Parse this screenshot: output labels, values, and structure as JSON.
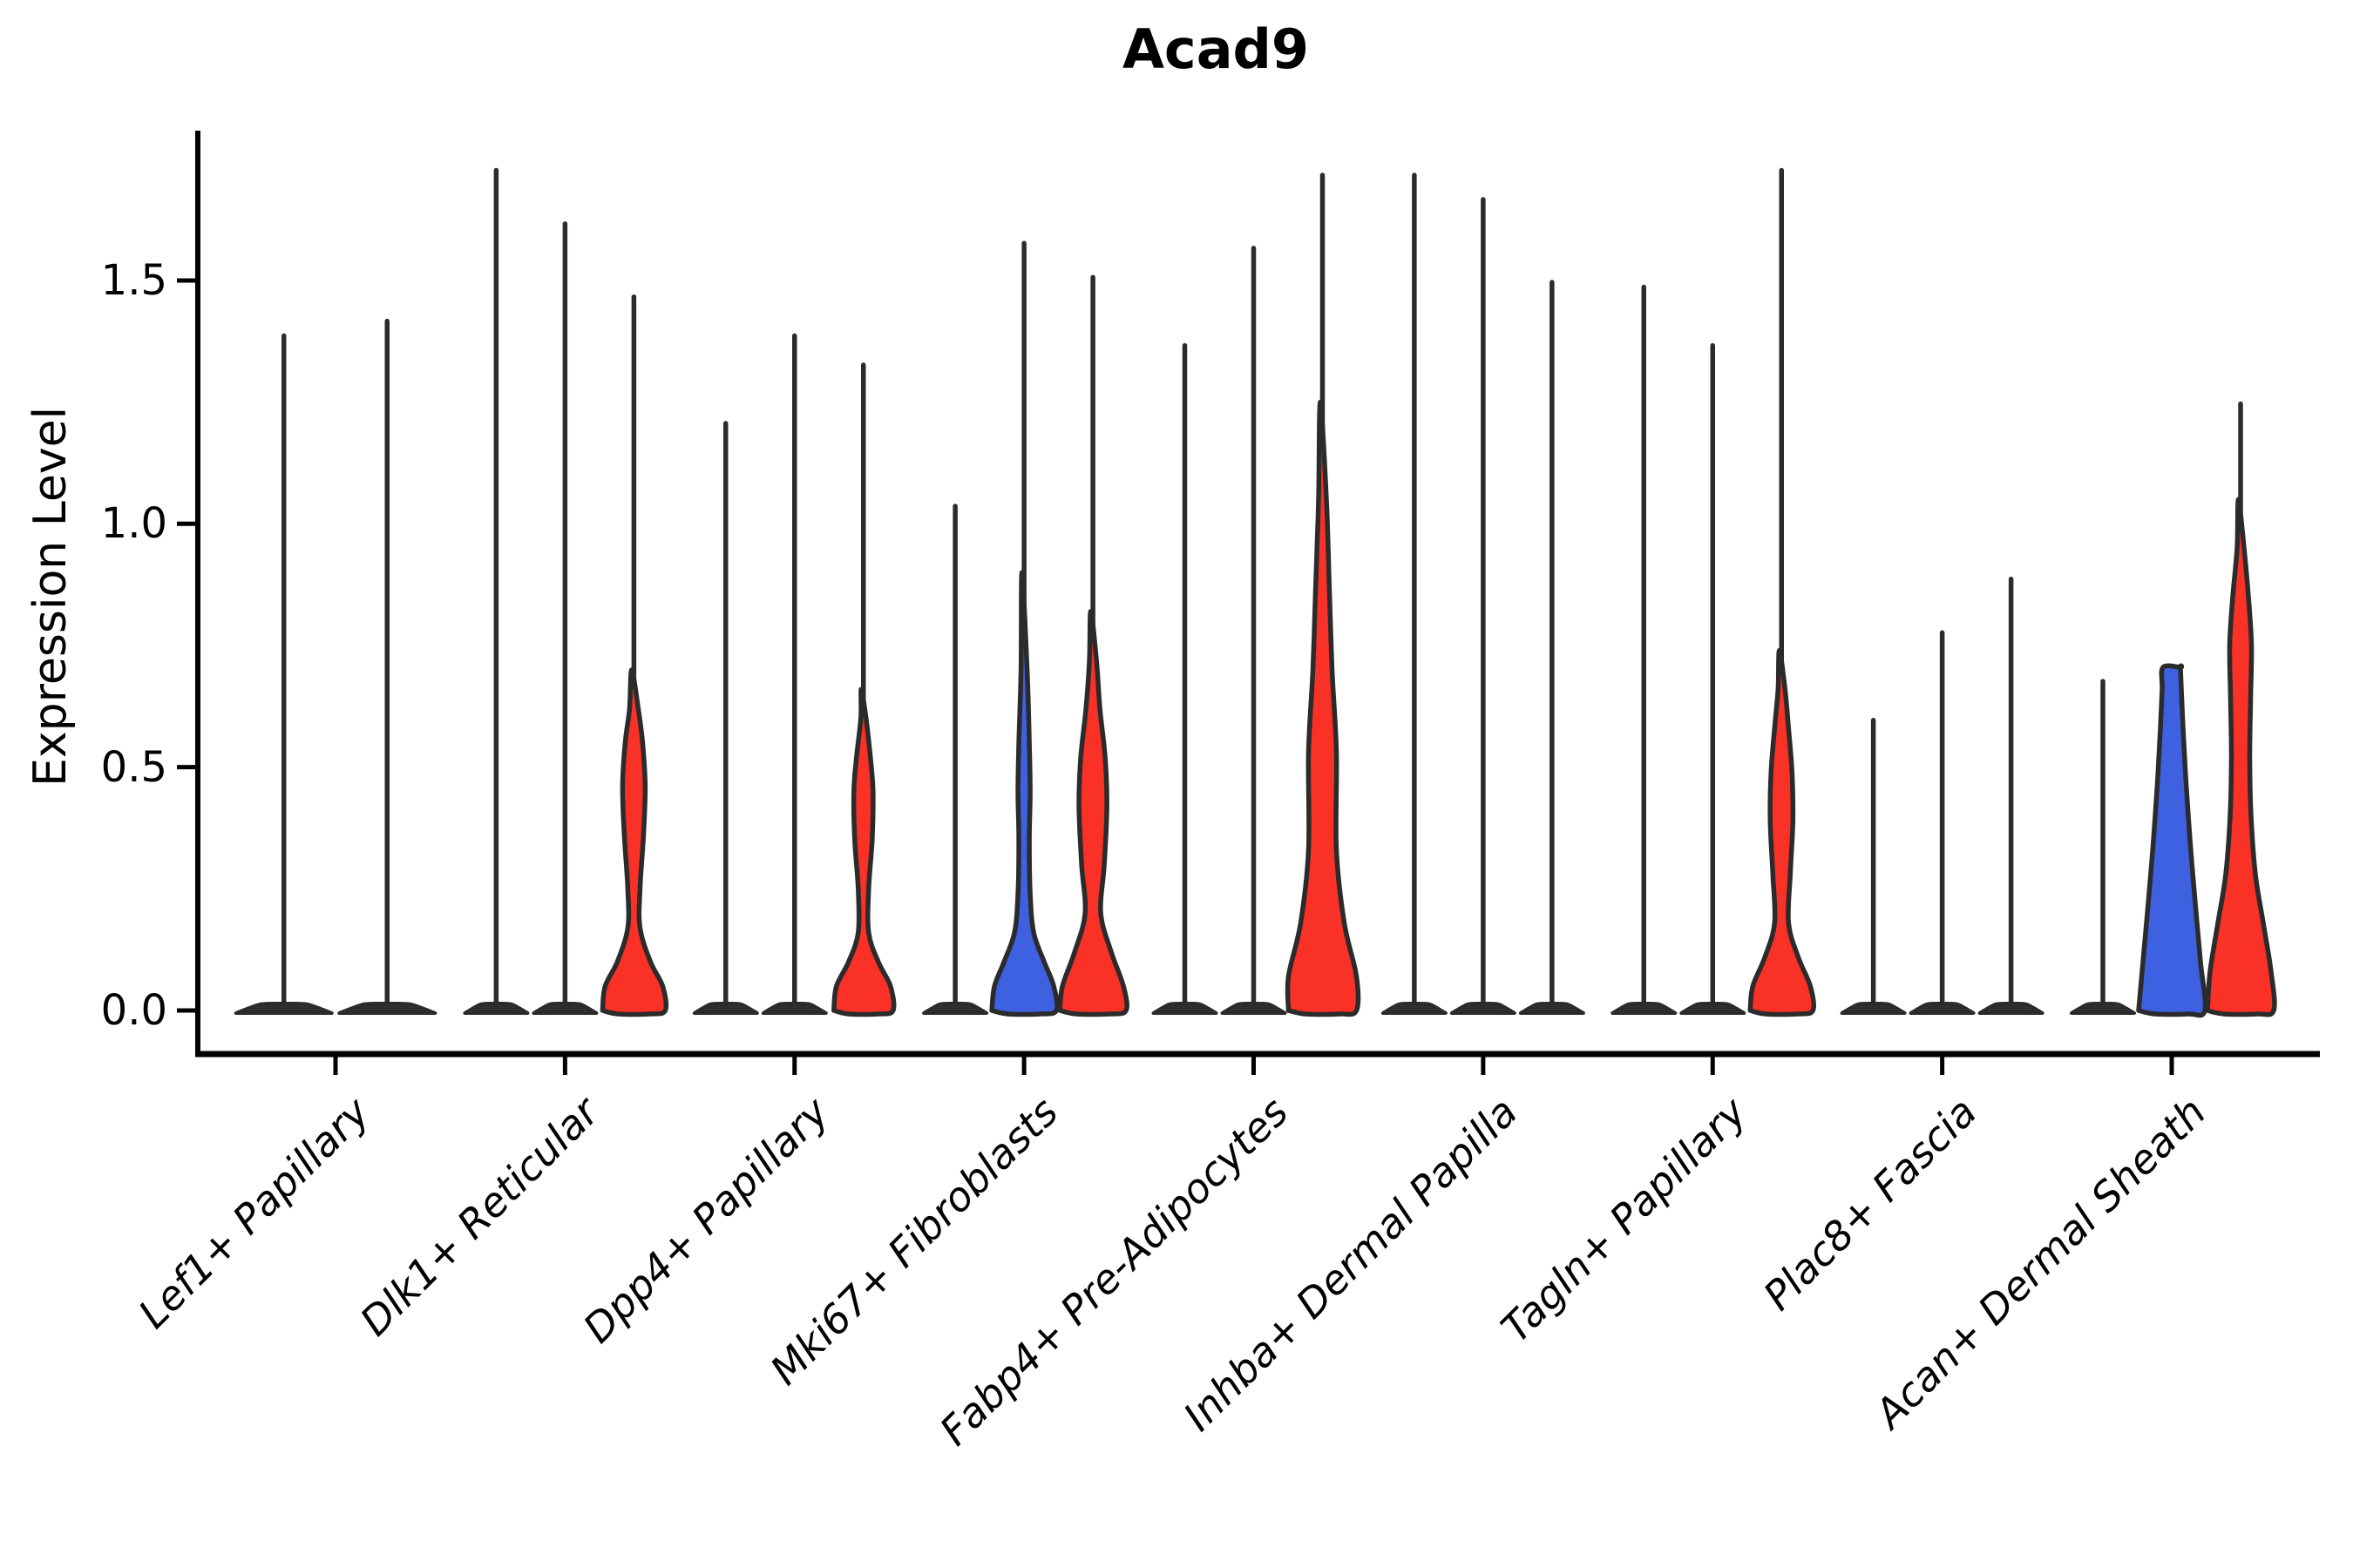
{
  "figure": {
    "title": "Acad9",
    "background": "#ffffff"
  },
  "chart_data": {
    "type": "violin",
    "title": "Acad9",
    "ylabel": "Expression Level",
    "xlabel": "",
    "grid": false,
    "legend": "none",
    "ylim": [
      -0.09,
      1.81
    ],
    "yticks": [
      0.0,
      0.5,
      1.0,
      1.5
    ],
    "ytick_labels": [
      "0.0",
      "0.5",
      "1.0",
      "1.5"
    ],
    "categories": [
      "Lef1+ Papillary",
      "Dlk1+ Reticular",
      "Dpp4+ Papillary",
      "Mki67+ Fibroblasts",
      "Fabp4+ Pre-Adipocytes",
      "Inhba+ Dermal Papilla",
      "Tagln+ Papillary",
      "Plac8+ Fascia",
      "Acan+ Dermal Sheath"
    ],
    "colors": {
      "red": "#f93127",
      "blue": "#3d61e0",
      "outline": "#2b2b2b",
      "thin_fill": "#2f2f2f"
    },
    "groups": [
      {
        "category": "Lef1+ Papillary",
        "violins": [
          {
            "slot": -0.75,
            "style": "thin",
            "max": 1.39,
            "mound_halfwidth": 55
          },
          {
            "slot": 0.75,
            "style": "thin",
            "max": 1.42,
            "mound_halfwidth": 55
          }
        ]
      },
      {
        "category": "Dlk1+ Reticular",
        "violins": [
          {
            "slot": -1,
            "style": "thin",
            "max": 1.73
          },
          {
            "slot": 0,
            "style": "thin",
            "max": 1.62
          },
          {
            "slot": 1,
            "style": "red",
            "max": 1.47,
            "profile": [
              [
                0,
                36
              ],
              [
                0.05,
                33
              ],
              [
                0.1,
                19
              ],
              [
                0.17,
                7
              ],
              [
                0.25,
                7
              ],
              [
                0.36,
                11
              ],
              [
                0.46,
                13
              ],
              [
                0.55,
                10
              ],
              [
                0.62,
                5
              ],
              [
                0.7,
                2.5
              ]
            ]
          }
        ]
      },
      {
        "category": "Dpp4+ Papillary",
        "violins": [
          {
            "slot": -1,
            "style": "thin",
            "max": 1.21
          },
          {
            "slot": 0,
            "style": "thin",
            "max": 1.39
          },
          {
            "slot": 1,
            "style": "red",
            "max": 1.33,
            "profile": [
              [
                0,
                34
              ],
              [
                0.05,
                31
              ],
              [
                0.1,
                17
              ],
              [
                0.16,
                6
              ],
              [
                0.25,
                6
              ],
              [
                0.35,
                10
              ],
              [
                0.45,
                11
              ],
              [
                0.52,
                8
              ],
              [
                0.6,
                3
              ],
              [
                0.66,
                2.5
              ]
            ]
          }
        ]
      },
      {
        "category": "Mki67+ Fibroblasts",
        "violins": [
          {
            "slot": -1,
            "style": "thin",
            "max": 1.04
          },
          {
            "slot": 0,
            "style": "blue",
            "max": 1.58,
            "profile": [
              [
                0,
                37
              ],
              [
                0.05,
                34
              ],
              [
                0.1,
                23
              ],
              [
                0.16,
                11
              ],
              [
                0.24,
                7
              ],
              [
                0.35,
                6
              ],
              [
                0.45,
                7
              ],
              [
                0.55,
                6
              ],
              [
                0.7,
                3.5
              ],
              [
                0.9,
                2.5
              ]
            ]
          },
          {
            "slot": 1,
            "style": "red",
            "max": 1.51,
            "profile": [
              [
                0,
                38
              ],
              [
                0.05,
                35
              ],
              [
                0.12,
                21
              ],
              [
                0.2,
                9
              ],
              [
                0.3,
                13
              ],
              [
                0.42,
                16
              ],
              [
                0.52,
                14
              ],
              [
                0.62,
                8
              ],
              [
                0.72,
                4
              ],
              [
                0.82,
                2.5
              ]
            ]
          }
        ]
      },
      {
        "category": "Fabp4+ Pre-Adipocytes",
        "violins": [
          {
            "slot": -1,
            "style": "thin",
            "max": 1.37
          },
          {
            "slot": 0,
            "style": "thin",
            "max": 1.57
          },
          {
            "slot": 1,
            "style": "red",
            "max": 1.72,
            "profile": [
              [
                0,
                39
              ],
              [
                0.07,
                39
              ],
              [
                0.18,
                25
              ],
              [
                0.33,
                16
              ],
              [
                0.53,
                16
              ],
              [
                0.7,
                11
              ],
              [
                0.86,
                8
              ],
              [
                1.05,
                4.5
              ],
              [
                1.25,
                2.5
              ]
            ]
          }
        ]
      },
      {
        "category": "Inhba+ Dermal Papilla",
        "violins": [
          {
            "slot": -1,
            "style": "thin",
            "max": 1.72
          },
          {
            "slot": 0,
            "style": "thin",
            "max": 1.67
          },
          {
            "slot": 1,
            "style": "thin",
            "max": 1.5
          }
        ]
      },
      {
        "category": "Tagln+ Papillary",
        "violins": [
          {
            "slot": -1,
            "style": "thin",
            "max": 1.49
          },
          {
            "slot": 0,
            "style": "thin",
            "max": 1.37
          },
          {
            "slot": 1,
            "style": "red",
            "max": 1.73,
            "profile": [
              [
                0,
                36
              ],
              [
                0.05,
                33
              ],
              [
                0.11,
                19
              ],
              [
                0.18,
                8
              ],
              [
                0.28,
                10
              ],
              [
                0.39,
                13
              ],
              [
                0.49,
                12
              ],
              [
                0.58,
                8
              ],
              [
                0.66,
                4
              ],
              [
                0.74,
                2.5
              ]
            ]
          }
        ]
      },
      {
        "category": "Plac8+ Fascia",
        "violins": [
          {
            "slot": -1,
            "style": "thin",
            "max": 0.6
          },
          {
            "slot": 0,
            "style": "thin",
            "max": 0.78
          },
          {
            "slot": 1,
            "style": "thin",
            "max": 0.89
          }
        ]
      },
      {
        "category": "Acan+ Dermal Sheath",
        "violins": [
          {
            "slot": -1,
            "style": "thin",
            "max": 0.68
          },
          {
            "slot": 0,
            "style": "blue",
            "max": 0.705,
            "top_flat": true,
            "profile": [
              [
                0,
                38
              ],
              [
                0.1,
                33
              ],
              [
                0.22,
                27
              ],
              [
                0.35,
                21
              ],
              [
                0.48,
                16
              ],
              [
                0.58,
                13
              ],
              [
                0.66,
                11
              ],
              [
                0.705,
                10
              ]
            ]
          },
          {
            "slot": 1,
            "style": "red",
            "max": 1.25,
            "profile": [
              [
                0,
                38
              ],
              [
                0.08,
                35
              ],
              [
                0.18,
                26
              ],
              [
                0.28,
                17
              ],
              [
                0.4,
                12
              ],
              [
                0.52,
                10.5
              ],
              [
                0.64,
                11.5
              ],
              [
                0.75,
                12.5
              ],
              [
                0.85,
                9
              ],
              [
                0.95,
                4
              ],
              [
                1.05,
                2.5
              ]
            ]
          }
        ]
      }
    ]
  }
}
